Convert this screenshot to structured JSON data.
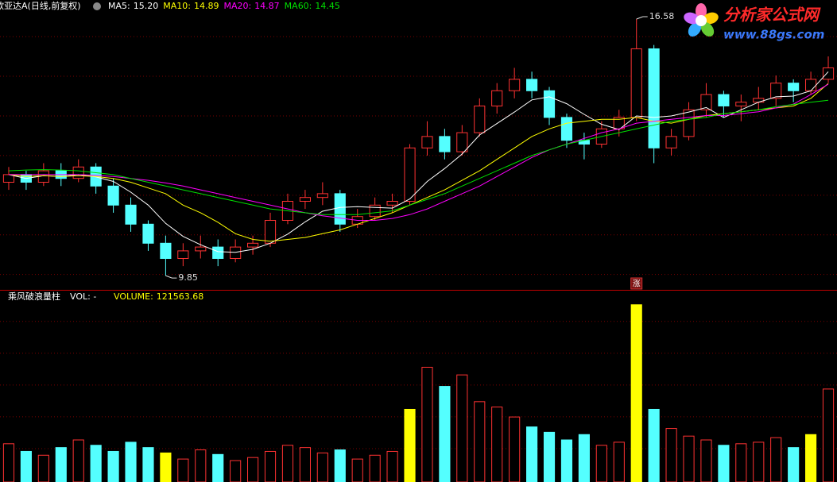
{
  "chart_data": {
    "type": "candlestick",
    "title": "欧亚达A(日线,前复权)",
    "ylim": [
      9.54,
      16.83
    ],
    "gridlines": [
      16.12,
      15.08,
      14.04,
      13.0,
      11.96,
      10.92,
      9.88
    ],
    "up_color": "#ff3232",
    "down_color": "#54ffff",
    "grid_color": "#7a0000",
    "candles": {
      "open": [
        12.3,
        12.5,
        12.3,
        12.6,
        12.4,
        12.7,
        12.2,
        11.7,
        11.2,
        10.7,
        10.3,
        10.5,
        10.6,
        10.3,
        10.6,
        10.7,
        11.3,
        11.8,
        11.9,
        12.0,
        11.2,
        11.4,
        11.7,
        11.8,
        13.2,
        13.5,
        13.1,
        13.6,
        14.3,
        14.7,
        15.0,
        14.7,
        14.0,
        13.4,
        13.3,
        13.7,
        14.0,
        15.8,
        13.2,
        13.5,
        14.2,
        14.6,
        14.3,
        14.4,
        14.5,
        14.9,
        14.7,
        15.0
      ],
      "high": [
        12.7,
        12.6,
        12.8,
        12.8,
        12.9,
        12.8,
        12.4,
        11.9,
        11.3,
        10.9,
        10.7,
        10.9,
        10.8,
        10.8,
        10.9,
        11.5,
        12.0,
        12.1,
        12.3,
        12.1,
        11.6,
        11.9,
        12.0,
        13.3,
        13.9,
        13.7,
        13.8,
        14.5,
        14.9,
        15.3,
        15.2,
        14.8,
        14.1,
        13.6,
        13.9,
        14.2,
        16.58,
        15.9,
        13.7,
        14.4,
        14.9,
        14.7,
        14.6,
        14.8,
        15.1,
        15.0,
        15.2,
        15.6
      ],
      "low": [
        12.1,
        12.1,
        12.2,
        12.2,
        12.3,
        12.0,
        11.5,
        11.0,
        10.5,
        9.85,
        10.1,
        10.3,
        10.1,
        10.2,
        10.4,
        10.6,
        11.2,
        11.6,
        11.7,
        11.0,
        11.1,
        11.3,
        11.5,
        11.7,
        13.0,
        12.9,
        13.0,
        13.5,
        14.1,
        14.5,
        14.5,
        13.8,
        13.2,
        12.9,
        13.2,
        13.5,
        13.9,
        12.8,
        13.0,
        13.4,
        14.0,
        14.0,
        13.9,
        14.2,
        14.3,
        14.4,
        14.6,
        14.9
      ],
      "close": [
        12.5,
        12.3,
        12.6,
        12.4,
        12.7,
        12.2,
        11.7,
        11.2,
        10.7,
        10.3,
        10.5,
        10.6,
        10.3,
        10.6,
        10.7,
        11.3,
        11.8,
        11.9,
        12.0,
        11.2,
        11.4,
        11.7,
        11.8,
        13.2,
        13.5,
        13.1,
        13.6,
        14.3,
        14.7,
        15.0,
        14.7,
        14.0,
        13.4,
        13.3,
        13.7,
        14.0,
        15.8,
        13.2,
        13.5,
        14.2,
        14.6,
        14.3,
        14.4,
        14.5,
        14.9,
        14.7,
        15.0,
        15.3
      ]
    },
    "high_label_candle": 36,
    "low_label_candle": 9,
    "series": [
      {
        "name": "MA5:",
        "color": "#ffffff",
        "value_label": "15.20",
        "values": [
          12.5,
          12.4,
          12.47,
          12.45,
          12.5,
          12.44,
          12.32,
          12.04,
          11.7,
          11.22,
          10.88,
          10.66,
          10.48,
          10.46,
          10.54,
          10.7,
          10.94,
          11.26,
          11.54,
          11.64,
          11.66,
          11.64,
          11.62,
          11.86,
          12.32,
          12.66,
          13.04,
          13.54,
          13.84,
          14.14,
          14.46,
          14.54,
          14.36,
          14.08,
          13.82,
          13.68,
          14.04,
          14.0,
          14.04,
          14.14,
          14.26,
          14.0,
          14.2,
          14.4,
          14.54,
          14.56,
          14.7,
          15.2
        ]
      },
      {
        "name": "MA10:",
        "color": "#ffff00",
        "value_label": "14.89",
        "values": [
          12.5,
          12.45,
          12.47,
          12.45,
          12.47,
          12.45,
          12.4,
          12.3,
          12.15,
          12.0,
          11.7,
          11.5,
          11.25,
          10.95,
          10.8,
          10.75,
          10.8,
          10.85,
          10.95,
          11.05,
          11.2,
          11.35,
          11.5,
          11.7,
          11.9,
          12.1,
          12.35,
          12.6,
          12.9,
          13.2,
          13.5,
          13.7,
          13.85,
          13.9,
          13.95,
          13.95,
          14.0,
          13.9,
          13.85,
          13.95,
          14.05,
          14.1,
          14.15,
          14.2,
          14.25,
          14.3,
          14.5,
          14.89
        ]
      },
      {
        "name": "MA20:",
        "color": "#ff00ff",
        "value_label": "14.87",
        "values": [
          12.5,
          12.5,
          12.5,
          12.5,
          12.5,
          12.48,
          12.45,
          12.4,
          12.35,
          12.28,
          12.2,
          12.1,
          12.0,
          11.9,
          11.8,
          11.7,
          11.6,
          11.5,
          11.42,
          11.36,
          11.3,
          11.3,
          11.35,
          11.45,
          11.6,
          11.8,
          12.0,
          12.2,
          12.45,
          12.7,
          12.95,
          13.15,
          13.3,
          13.45,
          13.6,
          13.7,
          13.85,
          13.9,
          13.95,
          14.0,
          14.05,
          14.05,
          14.1,
          14.15,
          14.25,
          14.35,
          14.6,
          14.87
        ]
      },
      {
        "name": "MA60:",
        "color": "#00e000",
        "value_label": "14.45",
        "values": [
          12.6,
          12.62,
          12.63,
          12.62,
          12.6,
          12.55,
          12.5,
          12.4,
          12.3,
          12.2,
          12.1,
          12.0,
          11.9,
          11.8,
          11.7,
          11.6,
          11.55,
          11.5,
          11.45,
          11.45,
          11.45,
          11.5,
          11.55,
          11.7,
          11.85,
          12.0,
          12.2,
          12.4,
          12.6,
          12.8,
          13.0,
          13.15,
          13.3,
          13.4,
          13.5,
          13.6,
          13.7,
          13.8,
          13.9,
          13.95,
          14.0,
          14.1,
          14.15,
          14.2,
          14.28,
          14.34,
          14.4,
          14.45
        ]
      }
    ],
    "markers": [
      {
        "text": "涨",
        "candle": 36
      }
    ],
    "volume": {
      "title": "乘风破浪量柱",
      "label": "VOL: -",
      "name": "VOLUME:",
      "ylim": [
        0,
        246000
      ],
      "gridlines": [
        43600,
        85200,
        126800,
        168300,
        209900
      ],
      "values": [
        50000,
        40000,
        35000,
        45000,
        55000,
        48000,
        40000,
        52000,
        45000,
        38000,
        30000,
        42000,
        36000,
        28000,
        32000,
        40000,
        48000,
        45000,
        38000,
        42000,
        30000,
        35000,
        40000,
        95000,
        150000,
        125000,
        140000,
        105000,
        98000,
        85000,
        72000,
        65000,
        55000,
        62000,
        48000,
        52000,
        231700,
        95000,
        70000,
        60000,
        55000,
        48000,
        50000,
        52000,
        58000,
        45000,
        62000,
        121563.68
      ],
      "colors": [
        "#ff3232",
        "#54ffff",
        "#ff3232",
        "#54ffff",
        "#ff3232",
        "#54ffff",
        "#54ffff",
        "#54ffff",
        "#54ffff",
        "#ffff00",
        "#ff3232",
        "#ff3232",
        "#54ffff",
        "#ff3232",
        "#ff3232",
        "#ff3232",
        "#ff3232",
        "#ff3232",
        "#ff3232",
        "#54ffff",
        "#ff3232",
        "#ff3232",
        "#ff3232",
        "#ffff00",
        "#ff3232",
        "#54ffff",
        "#ff3232",
        "#ff3232",
        "#ff3232",
        "#ff3232",
        "#54ffff",
        "#54ffff",
        "#54ffff",
        "#54ffff",
        "#ff3232",
        "#ff3232",
        "#ffff00",
        "#54ffff",
        "#ff3232",
        "#ff3232",
        "#ff3232",
        "#54ffff",
        "#ff3232",
        "#ff3232",
        "#ff3232",
        "#54ffff",
        "#ffff00",
        "#ff3232"
      ]
    },
    "logo": {
      "title": "分析家公式网",
      "url": "www.88gs.com"
    }
  }
}
